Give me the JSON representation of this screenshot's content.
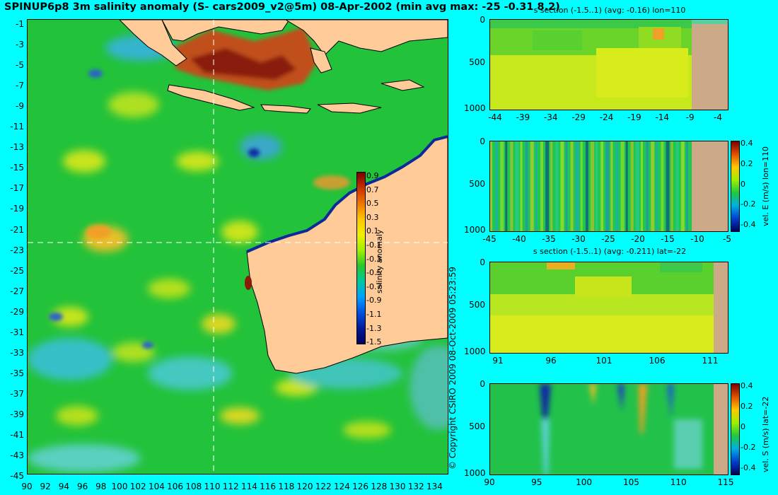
{
  "title": "SPINUP6p8 3m salinity anomaly (S- cars2009_v2@5m) 08-Apr-2002 (min avg max: -25 -0.31 8.2)",
  "copyright": "© Copyright CSIRO 2009  08-Oct-2009 05:23:59",
  "colors": {
    "background": "#00ffff",
    "land": "#ffcc99",
    "section_land": "#ccaa88",
    "crosshair": "#ffffff"
  },
  "main_map": {
    "y_ticks": [
      "-1",
      "-3",
      "-5",
      "-7",
      "-9",
      "-11",
      "-13",
      "-15",
      "-17",
      "-19",
      "-21",
      "-23",
      "-25",
      "-27",
      "-29",
      "-31",
      "-33",
      "-35",
      "-37",
      "-39",
      "-41",
      "-43",
      "-45"
    ],
    "x_ticks": [
      "90",
      "92",
      "94",
      "96",
      "98",
      "100",
      "102",
      "104",
      "106",
      "108",
      "110",
      "112",
      "114",
      "116",
      "118",
      "120",
      "122",
      "124",
      "126",
      "128",
      "130",
      "132",
      "134"
    ],
    "crosshair_lon": 110,
    "crosshair_lat": -22,
    "colorbar": {
      "label": "salinity anomaly",
      "ticks": [
        "0.9",
        "0.7",
        "0.5",
        "0.3",
        "0.1",
        "-0.1",
        "-0.3",
        "-0.5",
        "-0.7",
        "-0.9",
        "-1.1",
        "-1.3",
        "-1.5"
      ]
    }
  },
  "panels": [
    {
      "title": "s section (-1.5..1) (avg: -0.16) lon=110",
      "y_ticks": [
        "0",
        "500",
        "1000"
      ],
      "x_ticks": [
        "-44",
        "-39",
        "-34",
        "-29",
        "-24",
        "-19",
        "-14",
        "-9",
        "-4"
      ],
      "side_label": ""
    },
    {
      "title": "",
      "y_ticks": [
        "0",
        "500",
        "1000"
      ],
      "x_ticks": [
        "-45",
        "-40",
        "-35",
        "-30",
        "-25",
        "-20",
        "-15",
        "-10",
        "-5"
      ],
      "side_label": "vel. E (m/s) lon=110",
      "cbar_ticks": [
        "0.4",
        "0.2",
        "0",
        "-0.2",
        "-0.4"
      ]
    },
    {
      "title": "s section (-1.5..1) (avg: -0.211) lat=-22",
      "y_ticks": [
        "0",
        "500",
        "1000"
      ],
      "x_ticks": [
        "91",
        "96",
        "101",
        "106",
        "111"
      ],
      "side_label": ""
    },
    {
      "title": "",
      "y_ticks": [
        "0",
        "500",
        "1000"
      ],
      "x_ticks": [
        "90",
        "95",
        "100",
        "105",
        "110",
        "115"
      ],
      "side_label": "vel. S (m/s) lat=-22",
      "cbar_ticks": [
        "0.4",
        "0.2",
        "0",
        "-0.2",
        "-0.4"
      ]
    }
  ]
}
